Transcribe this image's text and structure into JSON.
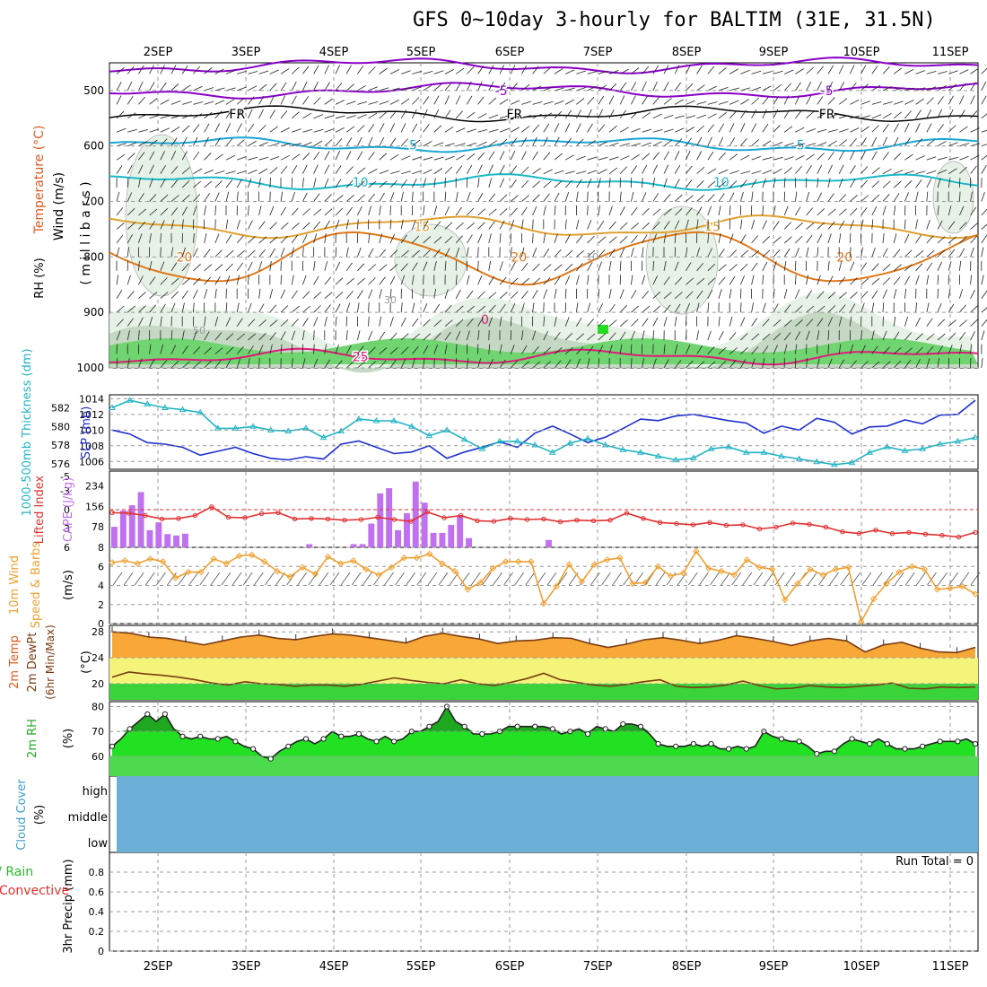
{
  "title": "GFS 0~10day 3-hourly for BALTIM (31E, 31.5N)",
  "colors": {
    "purple": "#8a00c8",
    "black": "#000000",
    "cyan_dark": "#1aa6d6",
    "teal": "#18b8c8",
    "gold": "#e0a030",
    "orange": "#e07818",
    "magenta": "#e0197a",
    "gray": "#aaaaaa",
    "rh_light": "#e6f2e6",
    "rh_mid": "#c4d8c4",
    "rh_dark": "#9fb89f",
    "rh_green": "#70d470",
    "slp_blue": "#1e2fd0",
    "thick_cyan": "#22b4c4",
    "cape_purple": "#c070f0",
    "li_red": "#e03030",
    "wind_orange": "#f0a030",
    "temp_orange": "#f8a838",
    "temp_line": "#7a3c14",
    "band_yellow": "#f4f47a",
    "band_green": "#3ad43a",
    "rh_bright": "#22e022",
    "rh_darkgreen": "#1fa81f",
    "cloud_blue": "#6baed6"
  },
  "chart_data": [
    {
      "type": "line",
      "panel": "Pressure levels",
      "ylabel_parts": [
        "Wind (m/s)",
        "Temperature (°C)",
        "RH (%)"
      ],
      "y_unit_label": "( m i l l i b a r s )",
      "y_ticks": [
        "500",
        "600",
        "700",
        "800",
        "900",
        "1000"
      ],
      "x_ticks": [
        "2SEP",
        "3SEP",
        "4SEP",
        "5SEP",
        "6SEP",
        "7SEP",
        "8SEP",
        "9SEP",
        "10SEP",
        "11SEP"
      ],
      "ylim": [
        450,
        1000
      ],
      "contour_labels": [
        "-5",
        "FR",
        "5",
        "10",
        "15",
        "20",
        "25",
        "0",
        "10",
        "30",
        "50"
      ],
      "isotherms": [
        {
          "name": "-5",
          "mb": 500,
          "color": "purple",
          "labels": [
            [
              3.9,
              "-5"
            ],
            [
              7.6,
              "-5"
            ]
          ]
        },
        {
          "name": "-5b",
          "mb": 455,
          "color": "purple",
          "labels": []
        },
        {
          "name": "FR",
          "mb": 542,
          "color": "black",
          "labels": [
            [
              0.9,
              "FR"
            ],
            [
              4.05,
              "FR"
            ],
            [
              7.6,
              "FR"
            ]
          ]
        },
        {
          "name": "5",
          "mb": 598,
          "color": "cyan_dark",
          "labels": [
            [
              2.9,
              "5"
            ],
            [
              7.3,
              "5"
            ]
          ]
        },
        {
          "name": "10",
          "mb": 665,
          "color": "teal",
          "labels": [
            [
              2.3,
              "10"
            ],
            [
              6.4,
              "10"
            ]
          ]
        },
        {
          "name": "15",
          "mb": 745,
          "color": "gold",
          "labels": [
            [
              3.0,
              "15"
            ],
            [
              6.3,
              "15"
            ]
          ]
        },
        {
          "name": "20",
          "mb": 800,
          "color": "orange",
          "labels": [
            [
              0.3,
              "20"
            ],
            [
              4.1,
              "20"
            ],
            [
              7.8,
              "20"
            ]
          ]
        },
        {
          "name": "25",
          "mb": 980,
          "color": "magenta",
          "labels": [
            [
              2.3,
              "25"
            ]
          ]
        }
      ]
    },
    {
      "type": "line",
      "panel": "SLP / Thickness",
      "ylabel_left": "1000-500mb Thickness (dm)",
      "ylabel_right": "SLP (mb)",
      "left_ticks": [
        "582",
        "580",
        "578",
        "576"
      ],
      "right_ticks": [
        "1014",
        "1012",
        "1010",
        "1008",
        "1006"
      ],
      "series": [
        {
          "name": "SLP (mb)",
          "values": [
            1010,
            1009.5,
            1008.4,
            1008.2,
            1007.8,
            1006.8,
            1007.3,
            1007.8,
            1007,
            1006.4,
            1006.2,
            1006.6,
            1006.3,
            1008.2,
            1008.6,
            1007.8,
            1007,
            1007.2,
            1008,
            1006.4,
            1007.2,
            1007.8,
            1008.5,
            1007.8,
            1009.6,
            1010.5,
            1009.5,
            1008.4,
            1009.1,
            1010.2,
            1011.4,
            1011.2,
            1011.8,
            1012,
            1011.6,
            1011.2,
            1010.9,
            1009.6,
            1010.5,
            1010,
            1011.5,
            1011,
            1009.5,
            1010.4,
            1010.5,
            1011.3,
            1010.8,
            1011.9,
            1012,
            1013.8
          ]
        },
        {
          "name": "Thickness (dm)",
          "values": [
            582,
            582.8,
            582.4,
            582,
            581.8,
            581.5,
            579.8,
            579.8,
            580,
            579.6,
            579.5,
            579.8,
            578.8,
            579.5,
            580.8,
            580.6,
            580.6,
            580,
            579,
            579.6,
            578.6,
            577.6,
            578.4,
            578.4,
            578,
            577.2,
            578.2,
            578.7,
            578,
            577.5,
            577.2,
            576.8,
            576.4,
            576.6,
            577.6,
            577.8,
            577.2,
            577.2,
            576.8,
            576.5,
            576.2,
            575.9,
            576.1,
            577.2,
            577.8,
            577.4,
            577.6,
            578.1,
            578.4,
            578.8
          ]
        }
      ]
    },
    {
      "type": "bar",
      "panel": "CAPE / Lifted Index",
      "ylabel_left": "Lifted Index",
      "ylabel_right": "CAPE (J/kg)",
      "left_ticks": [
        "-5",
        "-3",
        "0",
        "3",
        "6"
      ],
      "right_ticks": [
        "234",
        "156",
        "78"
      ],
      "series": [
        {
          "name": "CAPE (J/kg)",
          "values": [
            78,
            140,
            160,
            210,
            65,
            95,
            50,
            45,
            52,
            0,
            0,
            0,
            0,
            0,
            0,
            0,
            0,
            0,
            0,
            0,
            0,
            0,
            12,
            0,
            0,
            0,
            0,
            12,
            12,
            90,
            205,
            225,
            65,
            130,
            250,
            170,
            55,
            55,
            85,
            120,
            35,
            0,
            0,
            0,
            0,
            0,
            0,
            0,
            0,
            28,
            0,
            0,
            0,
            0,
            0,
            0,
            0,
            0,
            0,
            0,
            0,
            0,
            0,
            0,
            0,
            0,
            0,
            0,
            0,
            0,
            0,
            0,
            0,
            0,
            0,
            0,
            0,
            0,
            0,
            0
          ]
        },
        {
          "name": "Lifted Index",
          "values": [
            0.5,
            0.6,
            1.0,
            1.6,
            1.5,
            1.0,
            -0.5,
            1.3,
            1.4,
            0.7,
            0.5,
            1.6,
            1.5,
            1.6,
            1.8,
            1.7,
            1.3,
            1.7,
            2.0,
            0.4,
            1.4,
            1.0,
            1.9,
            2.0,
            1.5,
            1.7,
            1.6,
            2.1,
            1.8,
            1.9,
            1.8,
            0.6,
            1.5,
            2.2,
            2.4,
            2.6,
            2.2,
            2.7,
            2.6,
            3.3,
            3.0,
            2.3,
            2.5,
            3.0,
            3.8,
            4.1,
            3.5,
            4.1,
            3.9,
            4.2,
            4.4,
            4.7,
            3.9
          ]
        }
      ]
    },
    {
      "type": "line",
      "panel": "10m Wind",
      "ylabel_left": "10m Wind",
      "ylabel_mid": "Speed & Barbs",
      "ylabel_right": "(m/s)",
      "y_ticks": [
        "8",
        "6",
        "4",
        "2",
        "0"
      ],
      "ylim": [
        0,
        8
      ],
      "series": [
        {
          "name": "Speed",
          "values": [
            6.4,
            6.6,
            6.3,
            6.8,
            6.5,
            4.8,
            5.4,
            5.4,
            6.8,
            6.3,
            7.1,
            7.2,
            6.5,
            5.5,
            4.9,
            5.9,
            5.2,
            7.0,
            6.3,
            6.6,
            5.7,
            5.1,
            5.9,
            6.9,
            6.9,
            7.3,
            6.3,
            5.5,
            3.6,
            4.3,
            5.8,
            6.5,
            6.5,
            6.5,
            2.1,
            3.9,
            6.2,
            4.4,
            6.2,
            6.7,
            6.9,
            4.2,
            4.3,
            6.0,
            5.0,
            5.3,
            7.6,
            5.8,
            5.5,
            5.1,
            6.7,
            5.9,
            5.7,
            2.5,
            4.2,
            5.7,
            5.1,
            5.7,
            5.9,
            0.2,
            2.6,
            4.2,
            5.4,
            6.0,
            5.7,
            3.6,
            3.7,
            3.9,
            3.1
          ]
        }
      ]
    },
    {
      "type": "area",
      "panel": "2m Temp",
      "ylabel_left": "2m Temp",
      "ylabel_mid": "2m DewPt",
      "ylabel_right": "(6hr Min/Max)",
      "ylabel_unit": "(°C)",
      "y_ticks": [
        "28",
        "24",
        "20"
      ],
      "ylim": [
        17.5,
        29
      ],
      "series": [
        {
          "name": "2m Temp",
          "values": [
            28,
            27.8,
            27.2,
            27.0,
            26.5,
            26.0,
            26.6,
            27.2,
            27.5,
            27.0,
            26.8,
            27.3,
            27.7,
            27.5,
            27.1,
            26.7,
            26.3,
            27.3,
            27.8,
            27.3,
            26.9,
            26.2,
            26.6,
            26.7,
            27.1,
            27.0,
            26.2,
            25.6,
            26.1,
            26.8,
            27.1,
            26.7,
            26.2,
            26.7,
            27.4,
            27.0,
            26.5,
            25.9,
            26.6,
            27.0,
            26.6,
            24.9,
            26.0,
            26.4,
            25.5,
            24.9,
            24.8,
            25.6
          ]
        },
        {
          "name": "2m DewPt",
          "values": [
            21.0,
            21.8,
            21.5,
            21.3,
            21.0,
            20.6,
            20.1,
            19.8,
            20.3,
            20.0,
            19.9,
            19.6,
            19.8,
            19.8,
            19.6,
            19.9,
            20.4,
            20.9,
            20.5,
            20.2,
            20.0,
            20.6,
            20.0,
            19.7,
            20.2,
            20.8,
            21.6,
            20.6,
            20.2,
            19.8,
            19.6,
            19.9,
            20.3,
            20.6,
            19.6,
            19.4,
            19.5,
            19.8,
            20.4,
            19.7,
            19.2,
            19.3,
            19.7,
            19.5,
            19.4,
            19.6,
            19.8,
            20.1,
            19.3,
            19.2,
            19.5,
            19.4,
            19.5
          ]
        }
      ]
    },
    {
      "type": "area",
      "panel": "2m RH",
      "ylabel": "2m RH",
      "ylabel_unit": "(%)",
      "y_ticks": [
        "80",
        "70",
        "60"
      ],
      "ylim": [
        52,
        82
      ],
      "series": [
        {
          "name": "2m RH",
          "values": [
            64,
            67,
            71,
            74,
            77,
            74,
            77,
            71,
            68,
            67,
            68,
            67,
            67,
            68,
            66,
            64,
            63,
            60,
            59,
            62,
            64,
            66,
            67,
            65,
            67,
            70,
            68,
            68,
            69,
            67,
            66,
            68,
            66,
            67,
            70,
            70,
            72,
            74,
            80,
            74,
            72,
            69,
            69,
            69,
            70,
            72,
            72,
            72,
            72,
            72,
            71,
            69,
            70,
            71,
            69,
            72,
            71,
            70,
            73,
            73,
            72,
            69,
            65,
            64,
            64,
            64,
            65,
            64,
            65,
            63,
            63,
            64,
            63,
            64,
            70,
            68,
            67,
            66,
            66,
            64,
            61,
            62,
            62,
            65,
            67,
            66,
            65,
            67,
            65,
            63,
            63,
            63,
            64,
            65,
            66,
            66,
            66,
            67,
            65
          ]
        }
      ]
    },
    {
      "type": "area",
      "panel": "Cloud Cover",
      "ylabel": "Cloud Cover",
      "ylabel_unit": "(%)",
      "levels": [
        "high",
        "middle",
        "low"
      ]
    },
    {
      "type": "bar",
      "panel": "3hr Precip",
      "ylabel": "3hr Precip (mm)",
      "ylabel_left_a": "Total / Rain",
      "ylabel_left_b": "Convective",
      "y_ticks": [
        "0.8",
        "0.6",
        "0.4",
        "0.2",
        "0"
      ],
      "ylim": [
        0,
        1.0
      ],
      "run_total": "Run Total = 0",
      "series": [
        {
          "name": "Total / Rain",
          "values": []
        },
        {
          "name": "Convective",
          "values": []
        }
      ]
    }
  ]
}
